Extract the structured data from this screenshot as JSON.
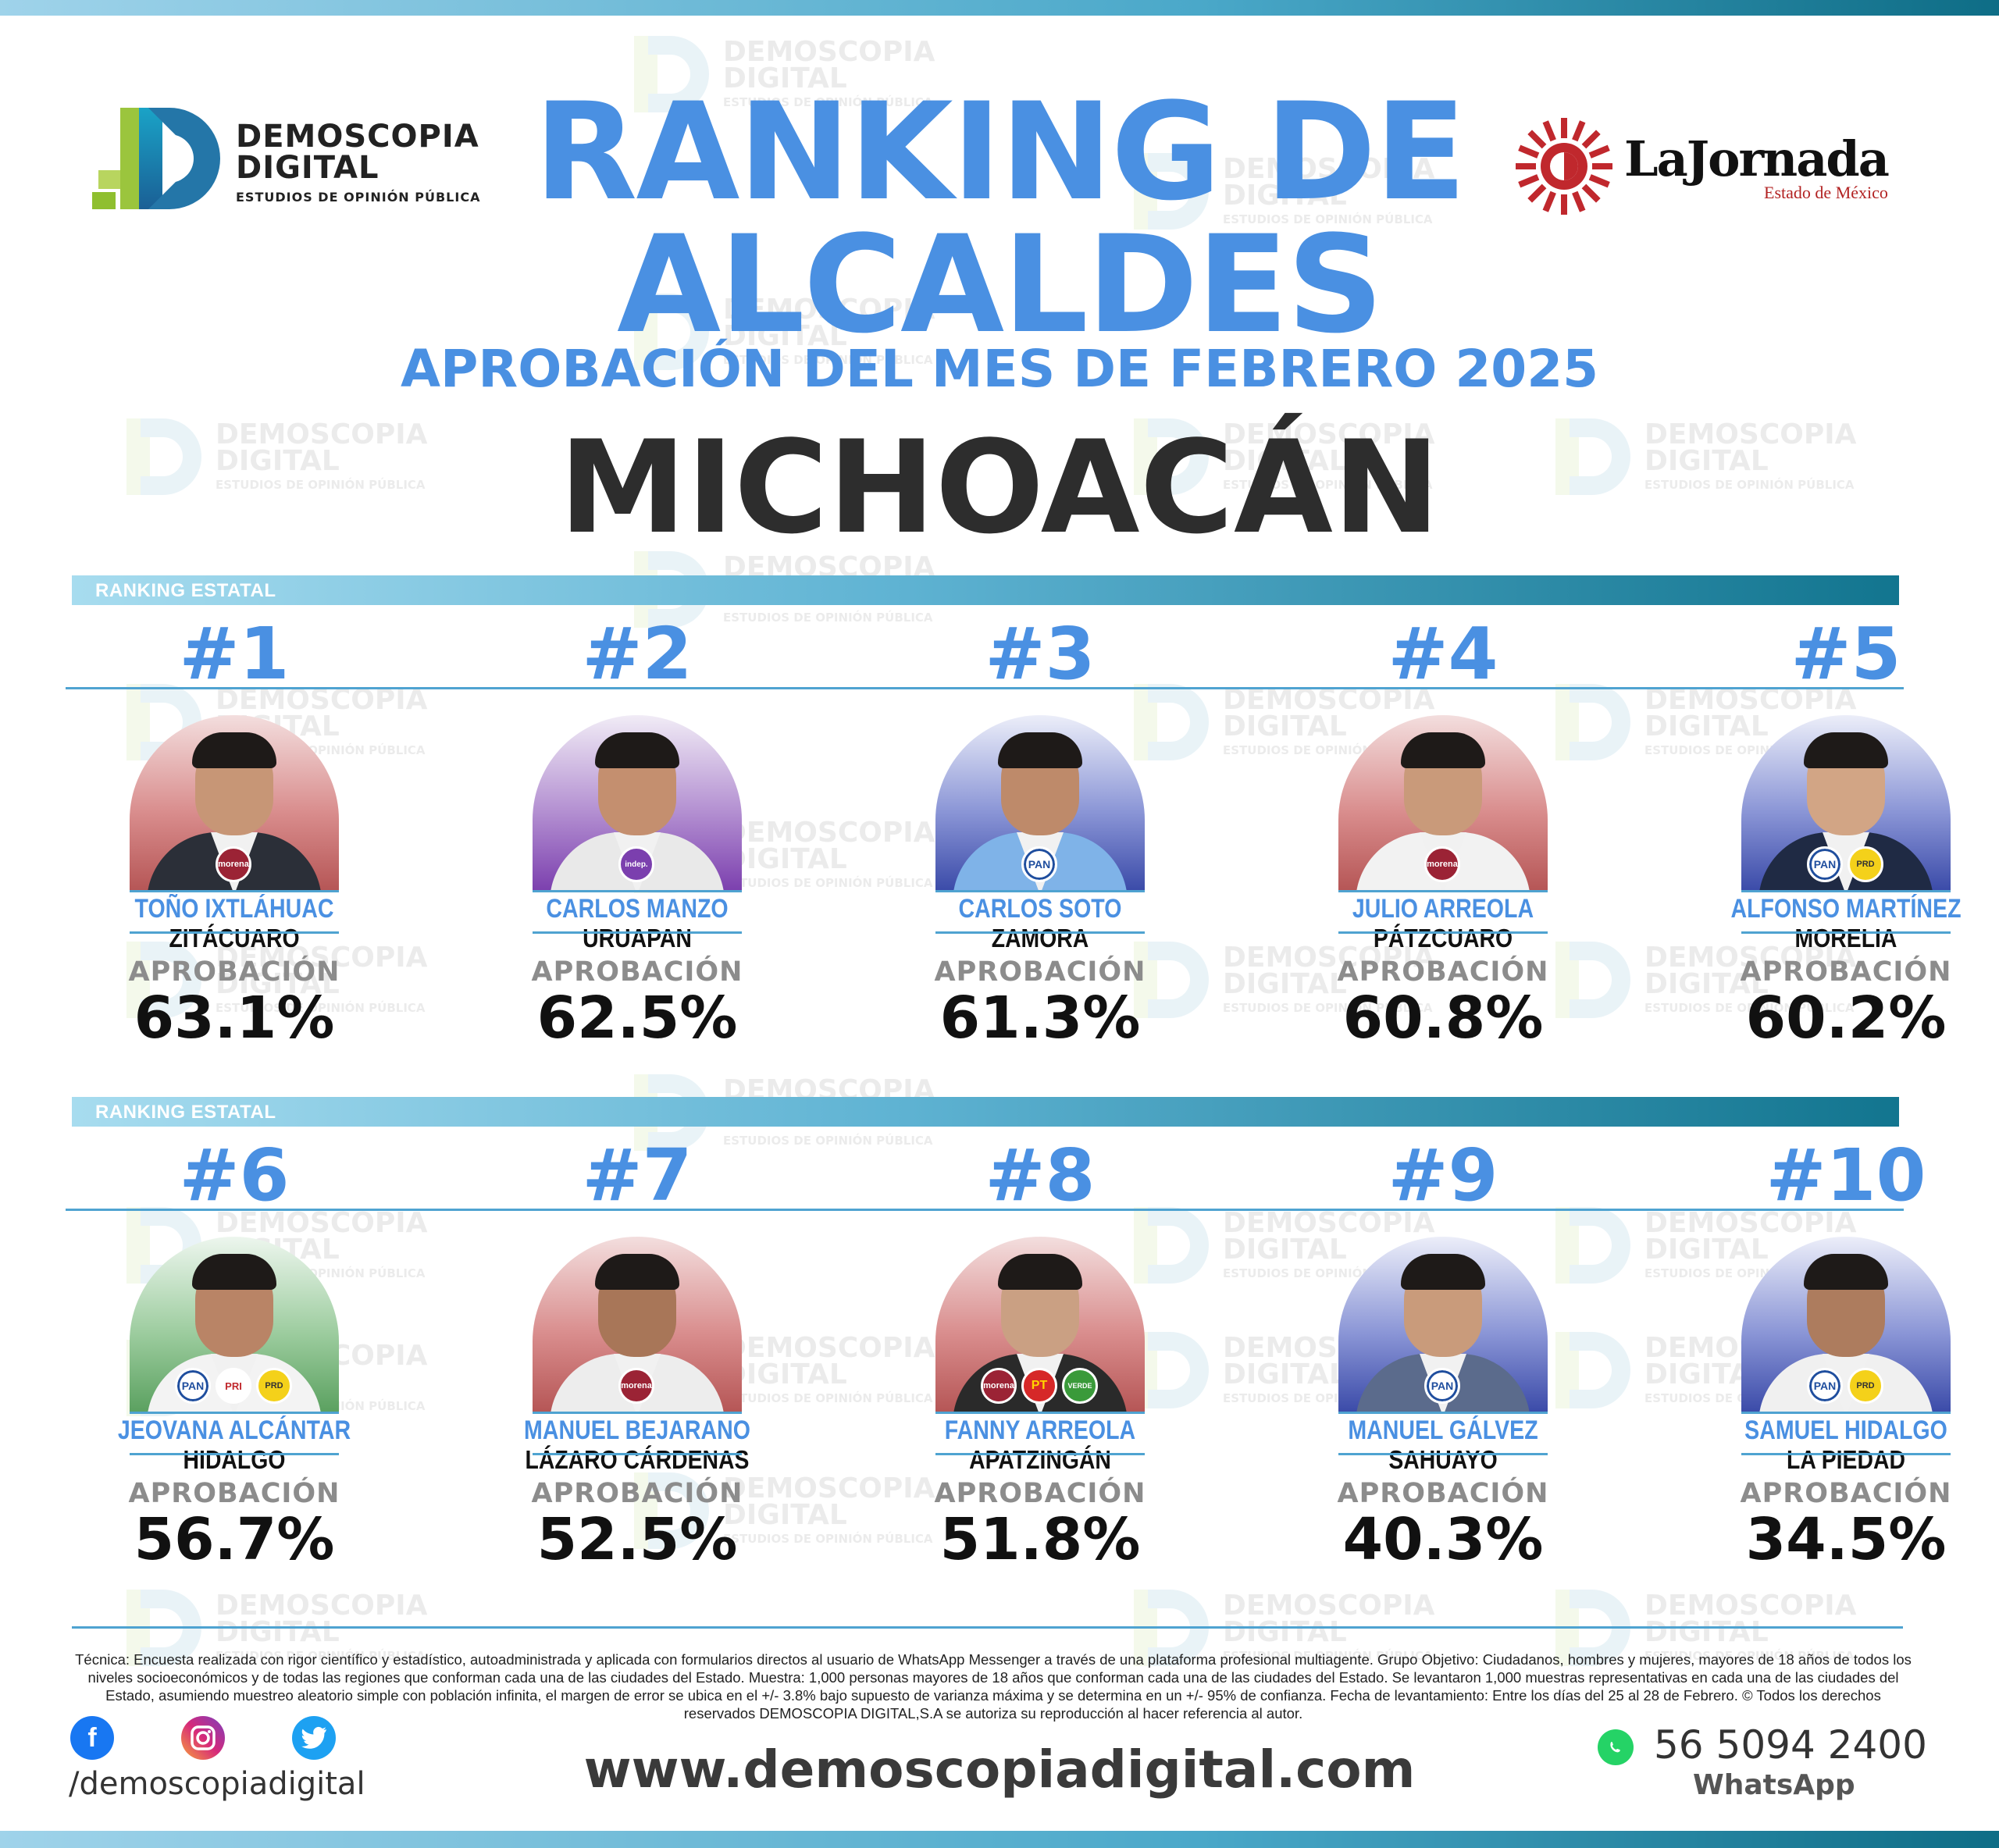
{
  "brand": {
    "demoscopia_line1": "DEMOSCOPIA",
    "demoscopia_line2": "DIGITAL",
    "demoscopia_tagline": "ESTUDIOS DE OPINIÓN PÚBLICA",
    "jornada_name": "LaJornada",
    "jornada_sub": "Estado de México",
    "colors": {
      "accent_blue": "#4a90e2",
      "teal": "#12758f",
      "morena": "#9b2335",
      "pan": "#1f4e9e",
      "prd": "#f4d11a"
    }
  },
  "header": {
    "title_line1": "RANKING DE",
    "title_line2": "ALCALDES",
    "subtitle": "APROBACIÓN DEL MES DE FEBRERO 2025",
    "region": "MICHOACÁN"
  },
  "sections": [
    {
      "label": "RANKING ESTATAL"
    },
    {
      "label": "RANKING ESTATAL"
    }
  ],
  "approval_label": "APROBACIÓN",
  "mayors": [
    {
      "rank": "#1",
      "name": "TOÑO IXTLÁHUAC",
      "city": "ZITÁCUARO",
      "approval": "63.1%",
      "approval_value": 63.1,
      "bg": "morena",
      "badges": [
        "morena"
      ]
    },
    {
      "rank": "#2",
      "name": "CARLOS MANZO",
      "city": "URUAPAN",
      "approval": "62.5%",
      "approval_value": 62.5,
      "bg": "independiente",
      "badges": [
        "independiente"
      ]
    },
    {
      "rank": "#3",
      "name": "CARLOS SOTO",
      "city": "ZAMORA",
      "approval": "61.3%",
      "approval_value": 61.3,
      "bg": "pan",
      "badges": [
        "PAN"
      ]
    },
    {
      "rank": "#4",
      "name": "JULIO ARREOLA",
      "city": "PÁTZCUARO",
      "approval": "60.8%",
      "approval_value": 60.8,
      "bg": "morena",
      "badges": [
        "morena"
      ]
    },
    {
      "rank": "#5",
      "name": "ALFONSO MARTÍNEZ",
      "city": "MORELIA",
      "approval": "60.2%",
      "approval_value": 60.2,
      "bg": "pan",
      "badges": [
        "PAN",
        "PRD"
      ]
    },
    {
      "rank": "#6",
      "name": "JEOVANA ALCÁNTAR",
      "city": "HIDALGO",
      "approval": "56.7%",
      "approval_value": 56.7,
      "bg": "pri",
      "badges": [
        "PAN",
        "PRI",
        "PRD"
      ]
    },
    {
      "rank": "#7",
      "name": "MANUEL BEJARANO",
      "city": "LÁZARO CÁRDENAS",
      "approval": "52.5%",
      "approval_value": 52.5,
      "bg": "morena",
      "badges": [
        "morena"
      ]
    },
    {
      "rank": "#8",
      "name": "FANNY ARREOLA",
      "city": "APATZINGÁN",
      "approval": "51.8%",
      "approval_value": 51.8,
      "bg": "morena",
      "badges": [
        "morena",
        "PT",
        "VERDE"
      ]
    },
    {
      "rank": "#9",
      "name": "MANUEL GÁLVEZ",
      "city": "SAHUAYO",
      "approval": "40.3%",
      "approval_value": 40.3,
      "bg": "pan",
      "badges": [
        "PAN"
      ]
    },
    {
      "rank": "#10",
      "name": "SAMUEL HIDALGO",
      "city": "LA PIEDAD",
      "approval": "34.5%",
      "approval_value": 34.5,
      "bg": "pan",
      "badges": [
        "PAN",
        "PRD"
      ]
    }
  ],
  "footer": {
    "methodology": "Técnica: Encuesta realizada con rigor científico y estadístico, autoadministrada y aplicada con formularios directos al usuario de WhatsApp Messenger a través de una plataforma profesional multiagente. Grupo Objetivo: Ciudadanos, hombres y mujeres, mayores de 18 años de todos los niveles socioeconómicos y de todas las regiones que conforman cada una de las ciudades del Estado. Muestra: 1,000 personas mayores de 18 años que conforman cada una de las ciudades del Estado. Se levantaron 1,000 muestras representativas en cada una de las ciudades del Estado, asumiendo muestreo aleatorio simple con población infinita, el margen de error se ubica en el +/- 3.8% bajo supuesto de varianza máxima y se determina en un +/- 95% de confianza. Fecha de levantamiento: Entre los días del 25 al 28 de Febrero. © Todos los derechos reservados DEMOSCOPIA DIGITAL,S.A se autoriza su reproducción al hacer referencia al autor.",
    "social_handle": "/demoscopiadigital",
    "website": "www.demoscopiadigital.com",
    "phone": "56 5094 2400",
    "whatsapp_label": "WhatsApp",
    "social_icons": [
      "facebook-icon",
      "instagram-icon",
      "twitter-icon"
    ]
  }
}
